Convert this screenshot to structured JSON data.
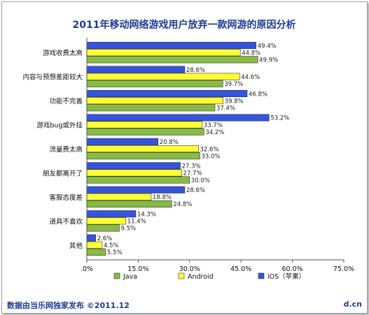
{
  "footer": {
    "source": "数据由当乐网独家发布 ©2011.12",
    "brand": "d.cn"
  },
  "chart_data": {
    "type": "bar",
    "orientation": "horizontal",
    "title": "2011年移动网络游戏用户放弃一款网游的原因分析",
    "categories": [
      "游戏收费太高",
      "内容与预想差距较大",
      "功能不完善",
      "游戏bug或外挂",
      "流量费太高",
      "朋友都离开了",
      "客服态度差",
      "道具不喜欢",
      "其他"
    ],
    "series": [
      {
        "name": "iOS（苹果）",
        "color": "#3355dd",
        "values": [
          49.4,
          28.6,
          46.8,
          53.2,
          20.8,
          27.3,
          28.6,
          14.3,
          2.6
        ]
      },
      {
        "name": "Android",
        "color": "#ffff33",
        "values": [
          44.8,
          44.6,
          39.8,
          33.7,
          32.6,
          27.7,
          18.8,
          11.4,
          4.5
        ]
      },
      {
        "name": "Java",
        "color": "#88bb44",
        "values": [
          49.9,
          39.7,
          37.4,
          34.2,
          33.0,
          30.0,
          24.8,
          9.5,
          5.5
        ]
      }
    ],
    "legend_order": [
      "Java",
      "Android",
      "iOS（苹果）"
    ],
    "xlim": [
      0,
      75
    ],
    "xticks": [
      ".0%",
      "15.0%",
      "30.0%",
      "45.0%",
      "60.0%",
      "75.0%"
    ],
    "grid": false,
    "legend_position": "bottom"
  }
}
